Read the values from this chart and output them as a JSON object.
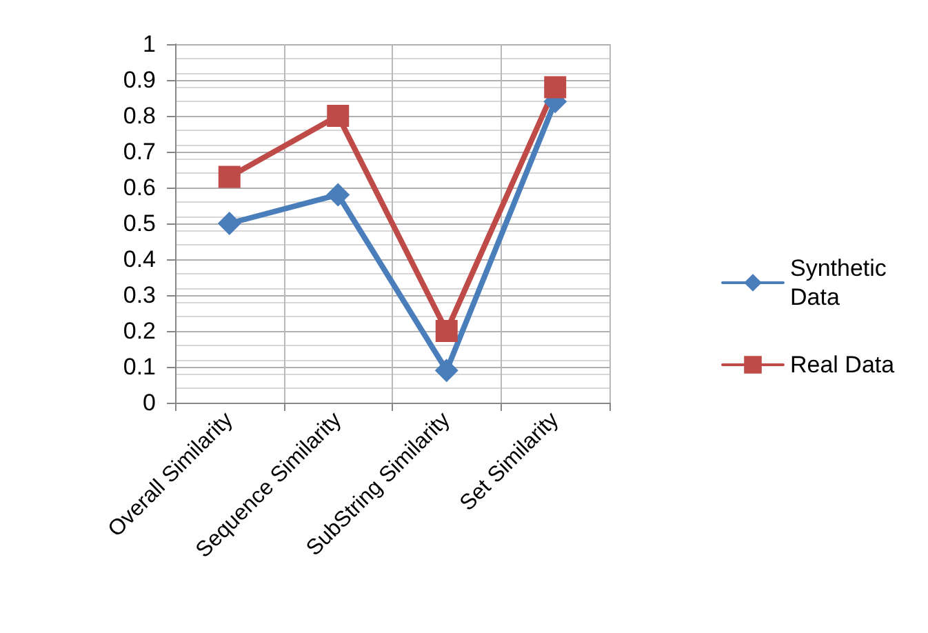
{
  "chart_data": {
    "type": "line",
    "categories": [
      "Overall Similarity",
      "Sequence Similarity",
      "SubString Similarity",
      "Set Similarity"
    ],
    "series": [
      {
        "name": "Synthetic Data",
        "color": "#4a7ebb",
        "values": [
          0.5,
          0.58,
          0.09,
          0.84
        ],
        "marker": "diamond"
      },
      {
        "name": "Real Data",
        "color": "#be4b48",
        "values": [
          0.63,
          0.8,
          0.2,
          0.88
        ],
        "marker": "square"
      }
    ],
    "ylim": [
      0,
      1
    ],
    "yticks": [
      0,
      0.1,
      0.2,
      0.3,
      0.4,
      0.5,
      0.6,
      0.7,
      0.8,
      0.9,
      1
    ],
    "grid": true,
    "legend": "right",
    "line_style": "solid"
  }
}
